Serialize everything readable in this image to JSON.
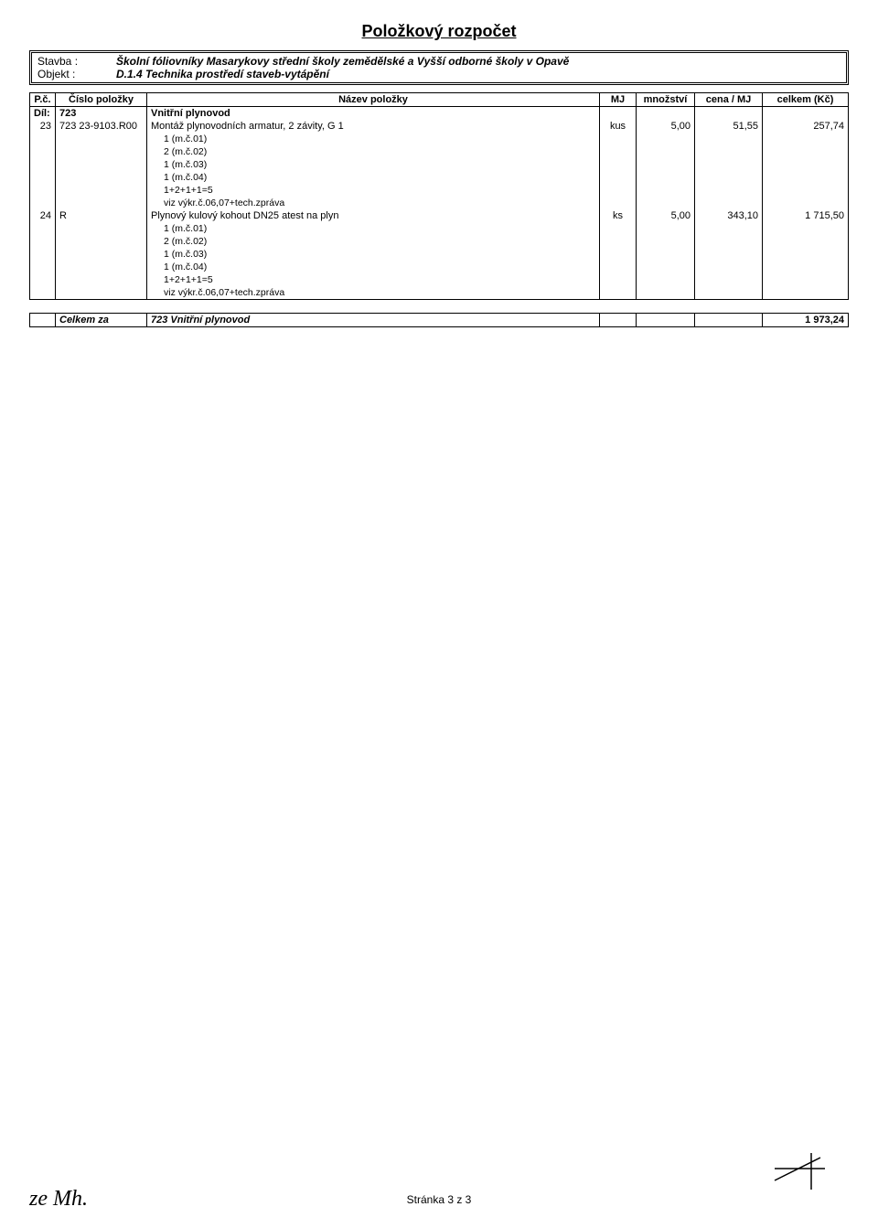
{
  "title": "Položkový rozpočet",
  "header": {
    "label_stavba": "Stavba :",
    "label_objekt": "Objekt :",
    "stavba": "Školní fóliovníky Masarykovy střední školy zemědělské a Vyšší odborné školy v Opavě",
    "objekt": "D.1.4 Technika prostředí staveb-vytápění"
  },
  "columns": {
    "pc": "P.č.",
    "cislo": "Číslo položky",
    "nazev": "Název položky",
    "mj": "MJ",
    "mnozstvi": "množství",
    "cena": "cena / MJ",
    "celkem": "celkem (Kč)"
  },
  "dil": {
    "label": "Díl:",
    "code": "723",
    "name": "Vnitřní plynovod"
  },
  "rows": [
    {
      "pc": "23",
      "code": "723 23-9103.R00",
      "name": "Montáž plynovodních armatur, 2 závity, G 1",
      "mj": "kus",
      "qty": "5,00",
      "rate": "51,55",
      "total": "257,74",
      "subs": [
        "1 (m.č.01)",
        "2 (m.č.02)",
        "1 (m.č.03)",
        "1 (m.č.04)",
        "1+2+1+1=5",
        "viz výkr.č.06,07+tech.zpráva"
      ]
    },
    {
      "pc": "24",
      "code": "R",
      "name": "Plynový kulový kohout DN25 atest na plyn",
      "mj": "ks",
      "qty": "5,00",
      "rate": "343,10",
      "total": "1 715,50",
      "subs": [
        "1 (m.č.01)",
        "2 (m.č.02)",
        "1 (m.č.03)",
        "1 (m.č.04)",
        "1+2+1+1=5",
        "viz výkr.č.06,07+tech.zpráva"
      ]
    }
  ],
  "total": {
    "label": "Celkem za",
    "name": "723 Vnitřní plynovod",
    "value": "1 973,24"
  },
  "footer": {
    "page": "Stránka 3 z 3",
    "hand": "ze Mh."
  }
}
